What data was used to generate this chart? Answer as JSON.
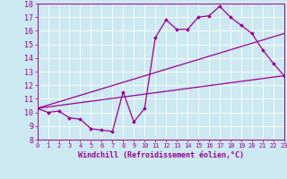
{
  "xlabel": "Windchill (Refroidissement éolien,°C)",
  "bg_color": "#cce8f0",
  "line_color": "#990099",
  "ylim": [
    8,
    18
  ],
  "xlim": [
    0,
    23
  ],
  "yticks": [
    8,
    9,
    10,
    11,
    12,
    13,
    14,
    15,
    16,
    17,
    18
  ],
  "xticks": [
    0,
    1,
    2,
    3,
    4,
    5,
    6,
    7,
    8,
    9,
    10,
    11,
    12,
    13,
    14,
    15,
    16,
    17,
    18,
    19,
    20,
    21,
    22,
    23
  ],
  "curve1_x": [
    0,
    1,
    2,
    3,
    4,
    5,
    6,
    7,
    8,
    9,
    10,
    11,
    12,
    13,
    14,
    15,
    16,
    17,
    18,
    19,
    20,
    21,
    22,
    23
  ],
  "curve1_y": [
    10.3,
    10.0,
    10.1,
    9.6,
    9.5,
    8.8,
    8.7,
    8.6,
    11.5,
    9.3,
    10.3,
    15.5,
    16.8,
    16.1,
    16.1,
    17.0,
    17.1,
    17.8,
    17.0,
    16.4,
    15.8,
    14.6,
    13.6,
    12.7
  ],
  "curve2_x": [
    0,
    23
  ],
  "curve2_y": [
    10.3,
    12.7
  ],
  "curve3_x": [
    0,
    23
  ],
  "curve3_y": [
    10.3,
    15.8
  ]
}
